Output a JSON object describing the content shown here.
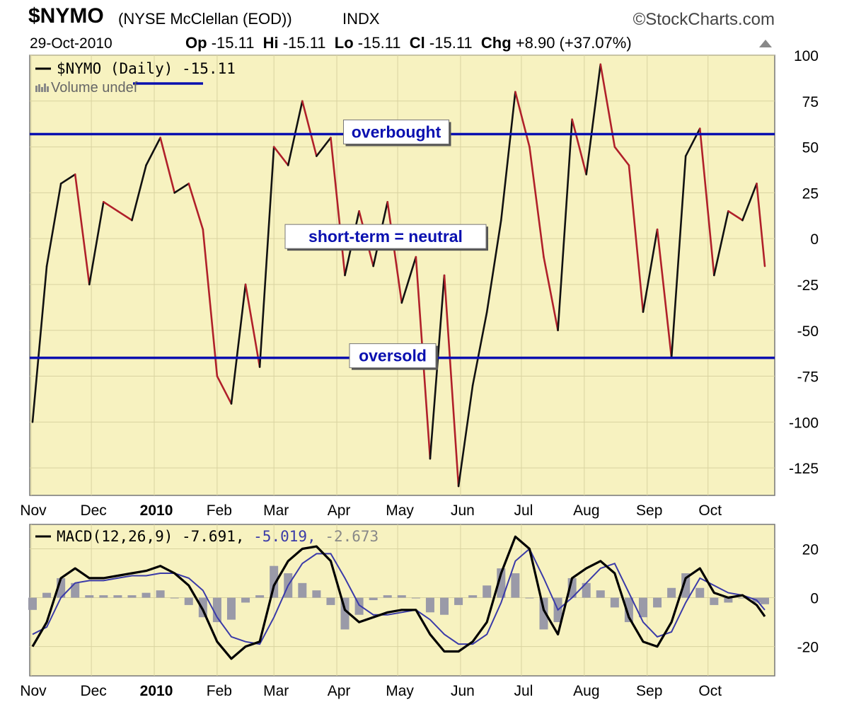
{
  "header": {
    "symbol": "$NYMO",
    "name": "(NYSE McClellan (EOD))",
    "exchange": "INDX",
    "brand": "©StockCharts.com",
    "date": "29-Oct-2010",
    "op_label": "Op",
    "op_value": "-15.11",
    "hi_label": "Hi",
    "hi_value": "-15.11",
    "lo_label": "Lo",
    "lo_value": "-15.11",
    "cl_label": "Cl",
    "cl_value": "-15.11",
    "chg_label": "Chg",
    "chg_value": "+8.90 (+37.07%)"
  },
  "colors": {
    "panel_bg": "#f7f2c0",
    "grid": "#d9d3a0",
    "nymo_up": "#111111",
    "nymo_down": "#b0202a",
    "level_line": "#0a10b0",
    "label_text": "#0a10b0",
    "macd_line": "#000000",
    "signal_line": "#3a3aa8",
    "histogram": "#9a9aa8"
  },
  "chart_data": [
    {
      "type": "line",
      "title": "$NYMO (Daily) -15.11",
      "legend": [
        "$NYMO (Daily) -15.11",
        "Volume undef"
      ],
      "ylim": [
        -140,
        100
      ],
      "yticks": [
        100,
        75,
        50,
        25,
        0,
        -25,
        -50,
        -75,
        -100,
        -125
      ],
      "xtick_labels": [
        "Nov",
        "Dec",
        "2010",
        "Feb",
        "Mar",
        "Apr",
        "May",
        "Jun",
        "Jul",
        "Aug",
        "Sep",
        "Oct"
      ],
      "x": [
        "2009-11-02",
        "2009-11-09",
        "2009-11-16",
        "2009-11-23",
        "2009-11-30",
        "2009-12-07",
        "2009-12-14",
        "2009-12-21",
        "2009-12-28",
        "2010-01-04",
        "2010-01-11",
        "2010-01-18",
        "2010-01-25",
        "2010-02-01",
        "2010-02-08",
        "2010-02-15",
        "2010-02-22",
        "2010-03-01",
        "2010-03-08",
        "2010-03-15",
        "2010-03-22",
        "2010-03-29",
        "2010-04-05",
        "2010-04-12",
        "2010-04-19",
        "2010-04-26",
        "2010-05-03",
        "2010-05-10",
        "2010-05-17",
        "2010-05-24",
        "2010-05-31",
        "2010-06-07",
        "2010-06-14",
        "2010-06-21",
        "2010-06-28",
        "2010-07-05",
        "2010-07-12",
        "2010-07-19",
        "2010-07-26",
        "2010-08-02",
        "2010-08-09",
        "2010-08-16",
        "2010-08-23",
        "2010-08-30",
        "2010-09-06",
        "2010-09-13",
        "2010-09-20",
        "2010-09-27",
        "2010-10-04",
        "2010-10-11",
        "2010-10-18",
        "2010-10-25",
        "2010-10-29"
      ],
      "series": [
        {
          "name": "$NYMO (Daily)",
          "values": [
            -100,
            -15,
            30,
            35,
            -25,
            20,
            15,
            10,
            40,
            55,
            25,
            30,
            5,
            -75,
            -90,
            -25,
            -70,
            50,
            40,
            75,
            45,
            55,
            -20,
            15,
            -15,
            20,
            -35,
            -10,
            -120,
            -20,
            -135,
            -80,
            -40,
            10,
            80,
            50,
            -10,
            -50,
            65,
            35,
            95,
            50,
            40,
            -40,
            5,
            -65,
            45,
            60,
            -20,
            15,
            10,
            30,
            -15
          ]
        }
      ],
      "reference_lines": [
        {
          "value": 57,
          "label": "overbought"
        },
        {
          "value": 0,
          "label": "short-term = neutral"
        },
        {
          "value": -65,
          "label": "oversold"
        }
      ]
    },
    {
      "type": "line",
      "title": "MACD(12,26,9) -7.691, -5.019, -2.673",
      "legend_parts": [
        "MACD(12,26,9) -7.691,",
        "-5.019,",
        "-2.673"
      ],
      "ylim": [
        -32,
        30
      ],
      "yticks": [
        20,
        0,
        -20
      ],
      "xtick_labels": [
        "Nov",
        "Dec",
        "2010",
        "Feb",
        "Mar",
        "Apr",
        "May",
        "Jun",
        "Jul",
        "Aug",
        "Sep",
        "Oct"
      ],
      "x": [
        "2009-11-02",
        "2009-11-09",
        "2009-11-16",
        "2009-11-23",
        "2009-11-30",
        "2009-12-07",
        "2009-12-14",
        "2009-12-21",
        "2009-12-28",
        "2010-01-04",
        "2010-01-11",
        "2010-01-18",
        "2010-01-25",
        "2010-02-01",
        "2010-02-08",
        "2010-02-15",
        "2010-02-22",
        "2010-03-01",
        "2010-03-08",
        "2010-03-15",
        "2010-03-22",
        "2010-03-29",
        "2010-04-05",
        "2010-04-12",
        "2010-04-19",
        "2010-04-26",
        "2010-05-03",
        "2010-05-10",
        "2010-05-17",
        "2010-05-24",
        "2010-05-31",
        "2010-06-07",
        "2010-06-14",
        "2010-06-21",
        "2010-06-28",
        "2010-07-05",
        "2010-07-12",
        "2010-07-19",
        "2010-07-26",
        "2010-08-02",
        "2010-08-09",
        "2010-08-16",
        "2010-08-23",
        "2010-08-30",
        "2010-09-06",
        "2010-09-13",
        "2010-09-20",
        "2010-09-27",
        "2010-10-04",
        "2010-10-11",
        "2010-10-18",
        "2010-10-25",
        "2010-10-29"
      ],
      "series": [
        {
          "name": "MACD(12,26,9)",
          "values": [
            -20,
            -10,
            8,
            12,
            8,
            8,
            9,
            10,
            11,
            13,
            10,
            5,
            -5,
            -18,
            -25,
            -20,
            -18,
            5,
            15,
            20,
            21,
            15,
            -5,
            -10,
            -8,
            -6,
            -5,
            -5,
            -15,
            -22,
            -22,
            -18,
            -10,
            10,
            25,
            20,
            -5,
            -15,
            8,
            12,
            15,
            10,
            -8,
            -18,
            -20,
            -10,
            8,
            12,
            2,
            0,
            1,
            -3,
            -7.691
          ]
        },
        {
          "name": "Signal",
          "values": [
            -15,
            -12,
            0,
            6,
            7,
            7,
            8,
            9,
            9,
            10,
            10,
            8,
            3,
            -8,
            -16,
            -18,
            -19,
            -8,
            5,
            14,
            18,
            18,
            8,
            -3,
            -7,
            -7,
            -6,
            -5,
            -9,
            -15,
            -19,
            -19,
            -15,
            -2,
            15,
            20,
            8,
            -5,
            0,
            6,
            12,
            14,
            2,
            -10,
            -16,
            -14,
            -2,
            8,
            5,
            2,
            1,
            -1,
            -5.019
          ]
        },
        {
          "name": "Histogram",
          "values": [
            -5,
            2,
            8,
            6,
            1,
            1,
            1,
            1,
            2,
            3,
            0,
            -3,
            -8,
            -10,
            -9,
            -2,
            1,
            13,
            10,
            6,
            3,
            -3,
            -13,
            -7,
            -1,
            1,
            1,
            0,
            -6,
            -7,
            -3,
            1,
            5,
            12,
            10,
            0,
            -13,
            -10,
            8,
            6,
            3,
            -4,
            -10,
            -8,
            -4,
            4,
            10,
            4,
            -3,
            -2,
            0,
            -2,
            -2.673
          ]
        }
      ]
    }
  ]
}
